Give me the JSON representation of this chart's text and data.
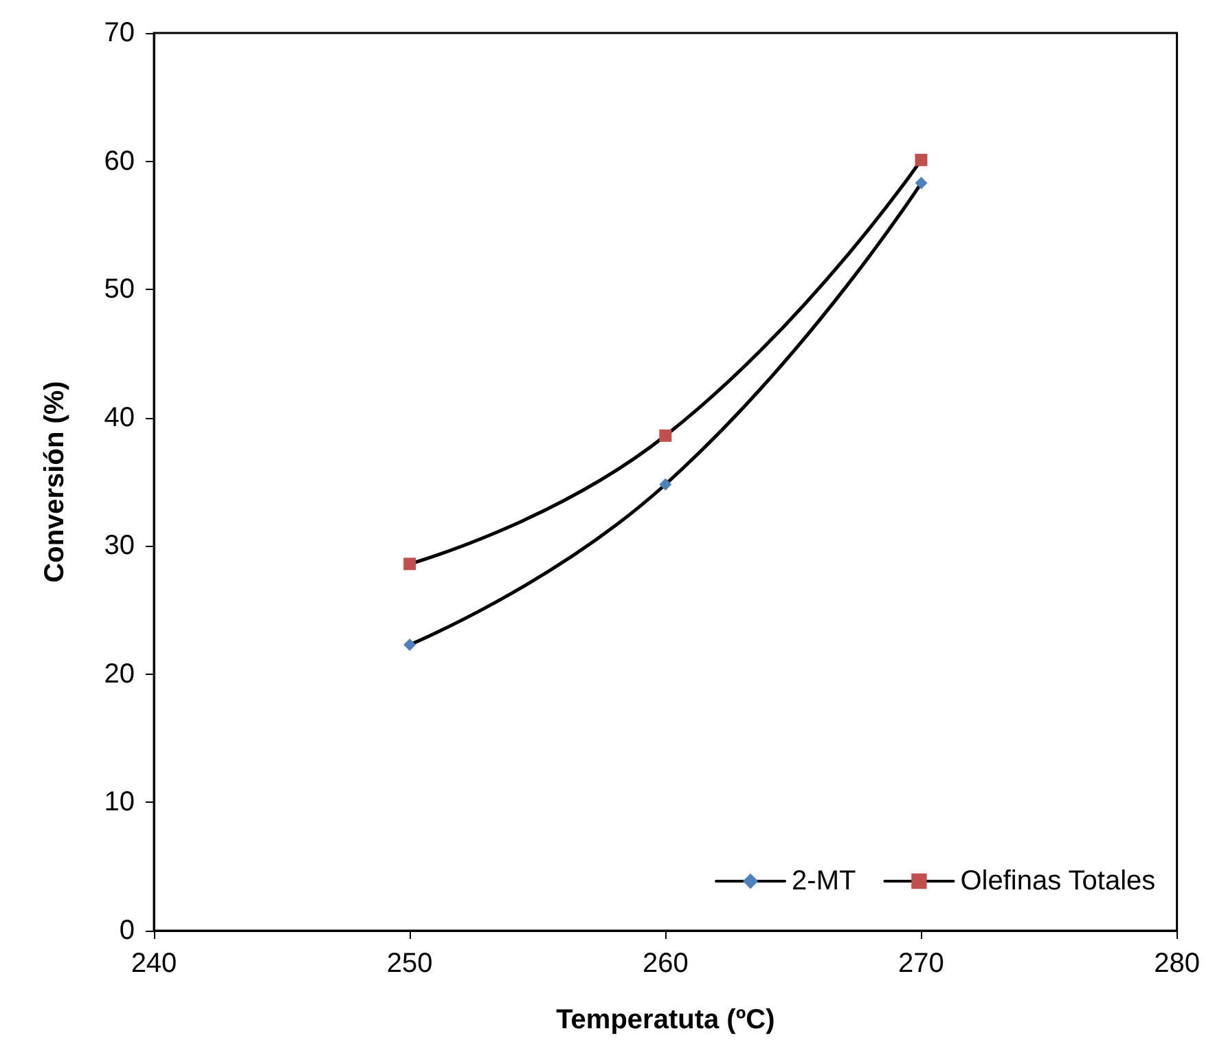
{
  "chart_data": {
    "type": "line",
    "xlabel": "Temperatuta (ºC)",
    "ylabel": "Conversión (%)",
    "x": [
      250,
      260,
      270
    ],
    "series": [
      {
        "name": "2-MT",
        "color": "#4f81bd",
        "marker": "diamond",
        "values": [
          22.3,
          34.8,
          58.3
        ]
      },
      {
        "name": "Olefinas Totales",
        "color": "#c0504d",
        "marker": "square",
        "values": [
          28.6,
          38.6,
          60.1
        ]
      }
    ],
    "xlim": [
      240,
      280
    ],
    "xticks": [
      240,
      250,
      260,
      270,
      280
    ],
    "ylim": [
      0,
      70
    ],
    "yticks": [
      0,
      10,
      20,
      30,
      40,
      50,
      60,
      70
    ],
    "grid": false,
    "legend": "bottom right",
    "line_style": "solid"
  }
}
